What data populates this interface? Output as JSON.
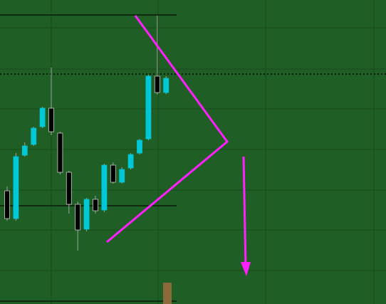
{
  "chart_data": {
    "type": "candlestick",
    "ylim": [
      0,
      427
    ],
    "up_color": "#00c8d6",
    "down_color": "#000000",
    "wick_color": "#9aa89a",
    "candles": [
      {
        "open": 159,
        "high": 165,
        "low": 117,
        "close": 120
      },
      {
        "open": 120,
        "high": 212,
        "low": 117,
        "close": 207
      },
      {
        "open": 209,
        "high": 227,
        "low": 207,
        "close": 222
      },
      {
        "open": 224,
        "high": 249,
        "low": 222,
        "close": 247
      },
      {
        "open": 249,
        "high": 277,
        "low": 247,
        "close": 275
      },
      {
        "open": 275,
        "high": 332,
        "low": 237,
        "close": 242
      },
      {
        "open": 240,
        "high": 242,
        "low": 182,
        "close": 185
      },
      {
        "open": 185,
        "high": 187,
        "low": 127,
        "close": 140
      },
      {
        "open": 140,
        "high": 144,
        "low": 75,
        "close": 104
      },
      {
        "open": 105,
        "high": 149,
        "low": 102,
        "close": 147
      },
      {
        "open": 147,
        "high": 152,
        "low": 127,
        "close": 131
      },
      {
        "open": 132,
        "high": 197,
        "low": 129,
        "close": 195
      },
      {
        "open": 195,
        "high": 199,
        "low": 169,
        "close": 171
      },
      {
        "open": 171,
        "high": 192,
        "low": 169,
        "close": 189
      },
      {
        "open": 191,
        "high": 212,
        "low": 189,
        "close": 210
      },
      {
        "open": 212,
        "high": 232,
        "low": 210,
        "close": 230
      },
      {
        "open": 232,
        "high": 322,
        "low": 230,
        "close": 320
      },
      {
        "open": 320,
        "high": 405,
        "low": 294,
        "close": 297
      },
      {
        "open": 297,
        "high": 320,
        "low": 295,
        "close": 317
      }
    ],
    "levels": [
      {
        "value": 406,
        "style": "solid"
      },
      {
        "value": 323,
        "style": "dotted"
      },
      {
        "value": 138,
        "style": "solid"
      },
      {
        "value": 4,
        "style": "solid"
      }
    ]
  }
}
